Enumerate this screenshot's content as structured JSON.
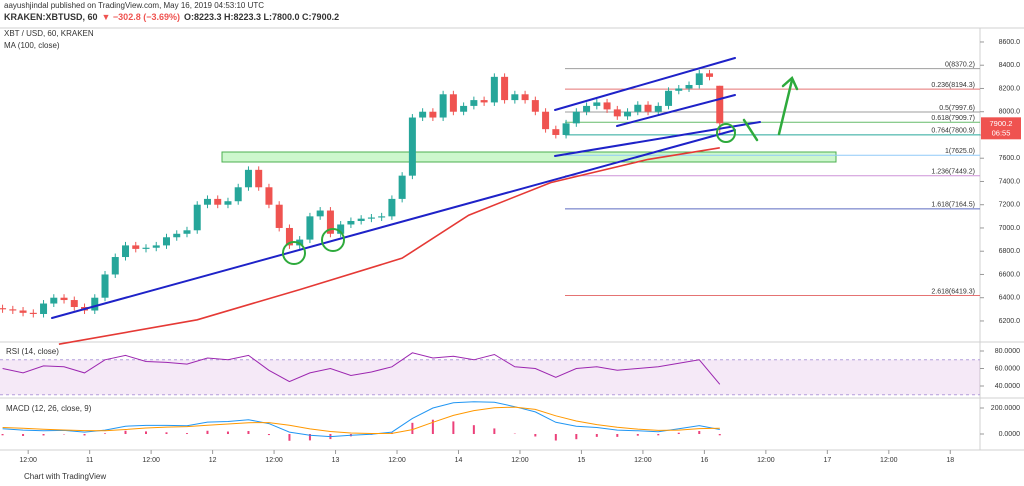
{
  "header": {
    "publisher": "aayushjindal published on TradingView.com, May 16, 2019 04:53:10 UTC",
    "symbol": "KRAKEN:XBTUSD, 60",
    "change": "▼ −302.8 (−3.69%)",
    "ohlc": "O:8223.3 H:8223.3 L:7800.0 C:7900.2"
  },
  "footer": "Chart with TradingView",
  "chart_data": [
    {
      "type": "candlestick",
      "title": "XBT / USD, 60, KRAKEN",
      "up_color": "#26a69a",
      "down_color": "#ef5350",
      "xlim": [
        6.5,
        197.8
      ],
      "ylim": [
        6019,
        8703
      ],
      "xticks": [
        {
          "value": 12,
          "label": "12:00"
        },
        {
          "value": 24,
          "label": "11"
        },
        {
          "value": 36,
          "label": "12:00"
        },
        {
          "value": 48,
          "label": "12"
        },
        {
          "value": 60,
          "label": "12:00"
        },
        {
          "value": 72,
          "label": "13"
        },
        {
          "value": 84,
          "label": "12:00"
        },
        {
          "value": 96,
          "label": "14"
        },
        {
          "value": 108,
          "label": "12:00"
        },
        {
          "value": 120,
          "label": "15"
        },
        {
          "value": 132,
          "label": "12:00"
        },
        {
          "value": 144,
          "label": "16"
        },
        {
          "value": 156,
          "label": "12:00"
        },
        {
          "value": 168,
          "label": "17"
        },
        {
          "value": 180,
          "label": "12:00"
        },
        {
          "value": 192,
          "label": "18"
        }
      ],
      "yticks": [
        {
          "value": 6200,
          "label": "6200.0"
        },
        {
          "value": 6400,
          "label": "6400.0"
        },
        {
          "value": 6600,
          "label": "6600.0"
        },
        {
          "value": 6800,
          "label": "6800.0"
        },
        {
          "value": 7000,
          "label": "7000.0"
        },
        {
          "value": 7200,
          "label": "7200.0"
        },
        {
          "value": 7400,
          "label": "7400.0"
        },
        {
          "value": 7600,
          "label": "7600.0"
        },
        {
          "value": 7800,
          "label": "7800.0"
        },
        {
          "value": 8000,
          "label": "8000.0"
        },
        {
          "value": 8200,
          "label": "8200.0"
        },
        {
          "value": 8400,
          "label": "8400.0"
        },
        {
          "value": 8600,
          "label": "8600.0"
        }
      ],
      "x": [
        7,
        9,
        11,
        13,
        15,
        17,
        19,
        21,
        23,
        25,
        27,
        29,
        31,
        33,
        35,
        37,
        39,
        41,
        43,
        45,
        47,
        49,
        51,
        53,
        55,
        57,
        59,
        61,
        63,
        65,
        67,
        69,
        71,
        73,
        75,
        77,
        79,
        81,
        83,
        85,
        87,
        89,
        91,
        93,
        95,
        97,
        99,
        101,
        103,
        105,
        107,
        109,
        111,
        113,
        115,
        117,
        119,
        121,
        123,
        125,
        127,
        129,
        131,
        133,
        135,
        137,
        139,
        141,
        143,
        145,
        147
      ],
      "open": [
        6310,
        6300,
        6290,
        6270,
        6260,
        6350,
        6400,
        6380,
        6320,
        6290,
        6400,
        6600,
        6750,
        6850,
        6820,
        6830,
        6850,
        6920,
        6950,
        6980,
        7200,
        7250,
        7200,
        7230,
        7350,
        7500,
        7350,
        7200,
        7000,
        6850,
        6900,
        7100,
        7150,
        6950,
        7030,
        7060,
        7080,
        7090,
        7100,
        7250,
        7450,
        7950,
        8000,
        7950,
        8150,
        8000,
        8050,
        8100,
        8080,
        8300,
        8100,
        8150,
        8100,
        8000,
        7850,
        7800,
        7900,
        8000,
        8050,
        8080,
        8020,
        7960,
        8000,
        8060,
        8000,
        8050,
        8180,
        8200,
        8230,
        8330,
        8223.3
      ],
      "high": [
        6340,
        6330,
        6320,
        6300,
        6380,
        6430,
        6430,
        6410,
        6350,
        6430,
        6630,
        6780,
        6880,
        6880,
        6860,
        6880,
        6950,
        6980,
        7010,
        7230,
        7280,
        7280,
        7260,
        7380,
        7530,
        7530,
        7380,
        7230,
        7030,
        6930,
        7130,
        7180,
        7180,
        7060,
        7090,
        7110,
        7120,
        7130,
        7280,
        7480,
        7980,
        8030,
        8030,
        8180,
        8180,
        8080,
        8130,
        8130,
        8330,
        8330,
        8180,
        8180,
        8130,
        8030,
        7880,
        7930,
        8030,
        8080,
        8110,
        8110,
        8050,
        8030,
        8090,
        8090,
        8080,
        8210,
        8230,
        8260,
        8360,
        8360,
        8223.3
      ],
      "low": [
        6270,
        6260,
        6240,
        6230,
        6230,
        6320,
        6350,
        6290,
        6260,
        6260,
        6370,
        6570,
        6720,
        6790,
        6790,
        6800,
        6820,
        6890,
        6920,
        6950,
        7170,
        7170,
        7170,
        7200,
        7320,
        7320,
        7170,
        6970,
        6820,
        6820,
        6870,
        7070,
        6920,
        6920,
        7000,
        7030,
        7050,
        7060,
        7070,
        7220,
        7420,
        7920,
        7920,
        7920,
        7970,
        7970,
        8020,
        8050,
        8050,
        8070,
        8070,
        8070,
        7970,
        7820,
        7770,
        7770,
        7870,
        7970,
        8020,
        7990,
        7930,
        7930,
        7970,
        7970,
        7970,
        8020,
        8150,
        8170,
        8200,
        8270,
        7800
      ],
      "close": [
        6300,
        6290,
        6270,
        6260,
        6350,
        6400,
        6380,
        6320,
        6290,
        6400,
        6600,
        6750,
        6850,
        6820,
        6830,
        6850,
        6920,
        6950,
        6980,
        7200,
        7250,
        7200,
        7230,
        7350,
        7500,
        7350,
        7200,
        7000,
        6850,
        6900,
        7100,
        7150,
        6950,
        7030,
        7060,
        7080,
        7090,
        7100,
        7250,
        7450,
        7950,
        8000,
        7950,
        8150,
        8000,
        8050,
        8100,
        8080,
        8300,
        8100,
        8150,
        8100,
        8000,
        7850,
        7800,
        7900,
        8000,
        8050,
        8080,
        8020,
        7960,
        8000,
        8060,
        8000,
        8050,
        8180,
        8200,
        8230,
        8330,
        8300,
        7900.2
      ],
      "countdown": "06:55",
      "ma": {
        "name": "MA (100, close)",
        "color": "#e53935",
        "x": [
          18,
          45,
          65,
          85,
          98,
          114,
          133,
          147
        ],
        "values": [
          6000,
          6210,
          6470,
          6740,
          7110,
          7390,
          7590,
          7690
        ]
      },
      "fib_levels": [
        {
          "label": "0(8370.2)",
          "value": 8370.2,
          "color": "#9e9e9e"
        },
        {
          "label": "0.236(8194.3)",
          "value": 8194.3,
          "color": "#e57373"
        },
        {
          "label": "0.5(7997.6)",
          "value": 7997.6,
          "color": "#9e9e9e"
        },
        {
          "label": "0.618(7909.7)",
          "value": 7909.7,
          "color": "#66bb6a"
        },
        {
          "label": "0.764(7800.9)",
          "value": 7800.9,
          "color": "#26a69a"
        },
        {
          "label": "1(7625.0)",
          "value": 7625.0,
          "color": "#90caf9"
        },
        {
          "label": "1.236(7449.2)",
          "value": 7449.2,
          "color": "#ce93d8"
        },
        {
          "label": "1.618(7164.5)",
          "value": 7164.5,
          "color": "#5c6bc0"
        },
        {
          "label": "2.618(6419.3)",
          "value": 6419.3,
          "color": "#e57373"
        }
      ]
    },
    {
      "type": "line",
      "title": "RSI (14, close)",
      "color": "#9c27b0",
      "band": [
        30,
        70
      ],
      "ylim": [
        26.3,
        90.3
      ],
      "yticks": [
        {
          "value": 40,
          "label": "40.0000"
        },
        {
          "value": 60,
          "label": "60.0000"
        },
        {
          "value": 80,
          "label": "80.0000"
        }
      ],
      "x": [
        7,
        11,
        15,
        19,
        23,
        27,
        31,
        35,
        39,
        43,
        47,
        51,
        55,
        59,
        63,
        67,
        71,
        75,
        79,
        83,
        87,
        91,
        95,
        99,
        103,
        107,
        111,
        115,
        119,
        123,
        127,
        131,
        135,
        139,
        143,
        147
      ],
      "values": [
        60,
        55,
        63,
        62,
        55,
        70,
        75,
        68,
        67,
        65,
        72,
        70,
        75,
        58,
        45,
        55,
        60,
        52,
        56,
        62,
        78,
        72,
        74,
        70,
        76,
        62,
        60,
        50,
        60,
        62,
        58,
        60,
        62,
        66,
        70,
        42
      ]
    },
    {
      "type": "macd",
      "title": "MACD (12, 26, close, 9)",
      "ylim": [
        -123,
        277
      ],
      "yticks": [
        {
          "value": 0,
          "label": "0.0000"
        },
        {
          "value": 200,
          "label": "200.0000"
        }
      ],
      "x": [
        7,
        11,
        15,
        19,
        23,
        27,
        31,
        35,
        39,
        43,
        47,
        51,
        55,
        59,
        63,
        67,
        71,
        75,
        79,
        83,
        87,
        91,
        95,
        99,
        103,
        107,
        111,
        115,
        119,
        123,
        127,
        131,
        135,
        139,
        143,
        147
      ],
      "series": [
        {
          "color": "#2196f3",
          "values": [
            40,
            30,
            25,
            28,
            15,
            30,
            60,
            66,
            66,
            64,
            92,
            96,
            110,
            80,
            15,
            -10,
            -20,
            -10,
            -2,
            15,
            120,
            200,
            240,
            248,
            245,
            210,
            170,
            90,
            60,
            50,
            30,
            25,
            18,
            40,
            65,
            35
          ]
        },
        {
          "color": "#ff9800",
          "values": [
            50,
            45,
            36,
            31,
            26,
            25,
            35,
            46,
            53,
            57,
            67,
            77,
            87,
            88,
            67,
            39,
            19,
            8,
            4,
            5,
            34,
            90,
            143,
            180,
            202,
            207,
            189,
            140,
            100,
            72,
            52,
            38,
            28,
            30,
            42,
            45
          ]
        }
      ],
      "histogram": {
        "color": "#ec407a",
        "values": [
          -10,
          -15,
          -11,
          -3,
          -11,
          5,
          25,
          20,
          13,
          7,
          25,
          19,
          23,
          -8,
          -52,
          -49,
          -39,
          -18,
          -6,
          10,
          86,
          110,
          97,
          68,
          43,
          3,
          -19,
          -50,
          -40,
          -22,
          -22,
          -13,
          -10,
          10,
          23,
          -10
        ]
      }
    }
  ]
}
